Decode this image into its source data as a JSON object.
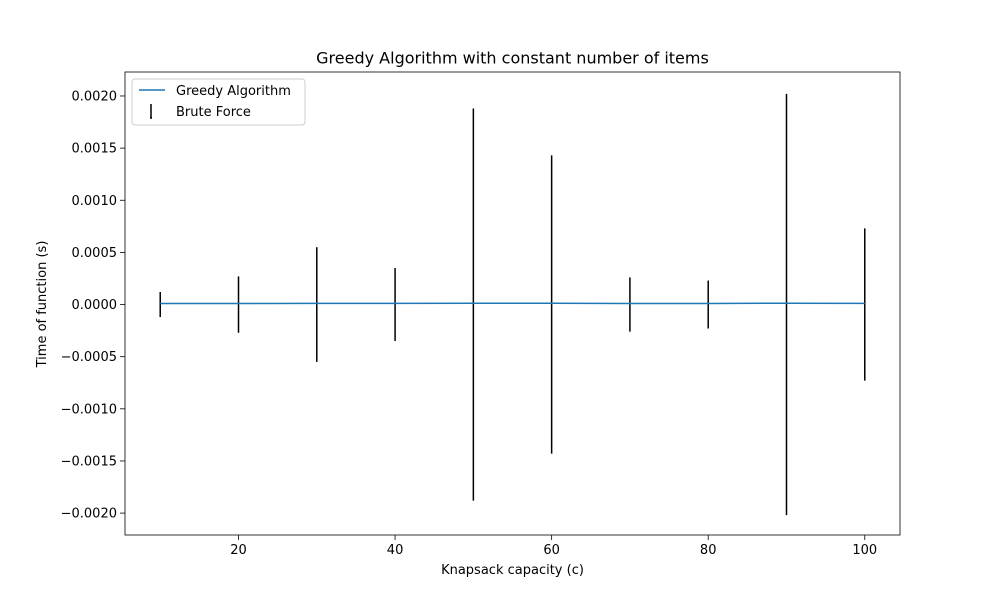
{
  "chart_data": {
    "type": "line",
    "title": "Greedy Algorithm with constant number of items",
    "xlabel": "Knapsack capacity (c)",
    "ylabel": "Time of function (s)",
    "xlim": [
      5.5,
      104.5
    ],
    "ylim": [
      -0.00221,
      0.00223
    ],
    "x_ticks": [
      20,
      40,
      60,
      80,
      100
    ],
    "x_tick_labels": [
      "20",
      "40",
      "60",
      "80",
      "100"
    ],
    "y_ticks": [
      -0.002,
      -0.0015,
      -0.001,
      -0.0005,
      0.0,
      0.0005,
      0.001,
      0.0015,
      0.002
    ],
    "y_tick_labels": [
      "−0.0020",
      "−0.0015",
      "−0.0010",
      "−0.0005",
      "0.0000",
      "0.0005",
      "0.0010",
      "0.0015",
      "0.0020"
    ],
    "grid": false,
    "legend_position": "top-left",
    "series": [
      {
        "name": "Greedy Algorithm",
        "kind": "line",
        "color": "#1f77b4",
        "x": [
          10,
          20,
          30,
          40,
          50,
          60,
          70,
          80,
          90,
          100
        ],
        "y": [
          1e-05,
          1e-05,
          1.1e-05,
          1.1e-05,
          1.3e-05,
          1.2e-05,
          1e-05,
          1e-05,
          1.3e-05,
          1.1e-05
        ]
      },
      {
        "name": "Brute Force",
        "kind": "errorbar",
        "color": "#000000",
        "x": [
          10,
          20,
          30,
          40,
          50,
          60,
          70,
          80,
          90,
          100
        ],
        "y": [
          0,
          0,
          0,
          0,
          0,
          0,
          0,
          0,
          0,
          0
        ],
        "yerr": [
          0.00012,
          0.00027,
          0.00055,
          0.00035,
          0.00188,
          0.00143,
          0.00026,
          0.00023,
          0.00202,
          0.00073
        ]
      }
    ]
  }
}
